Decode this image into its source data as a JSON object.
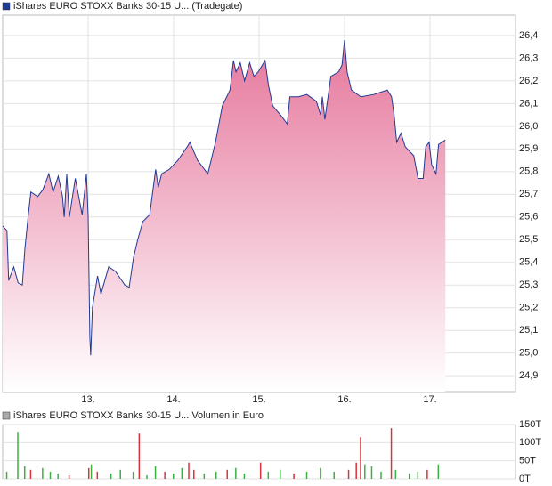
{
  "chart_data": [
    {
      "type": "line",
      "title": "iShares EURO STOXX Banks 30-15 U... (Tradegate)",
      "color": "#1f3a93",
      "fill_top": "#e6779c",
      "grid": true,
      "x": [
        12.0,
        12.05,
        12.07,
        12.13,
        12.18,
        12.23,
        12.26,
        12.3,
        12.33,
        12.41,
        12.47,
        12.54,
        12.59,
        12.65,
        12.7,
        12.72,
        12.75,
        12.78,
        12.85,
        12.93,
        12.98,
        13.0,
        13.02,
        13.03,
        13.05,
        13.11,
        13.15,
        13.24,
        13.32,
        13.43,
        13.48,
        13.53,
        13.58,
        13.64,
        13.72,
        13.79,
        13.82,
        13.86,
        13.95,
        14.05,
        14.16,
        14.19,
        14.28,
        14.4,
        14.49,
        14.57,
        14.66,
        14.7,
        14.73,
        14.78,
        14.83,
        14.89,
        14.94,
        14.99,
        15.07,
        15.11,
        15.16,
        15.25,
        15.33,
        15.36,
        15.46,
        15.56,
        15.67,
        15.72,
        15.74,
        15.77,
        15.84,
        15.93,
        15.97,
        16.0,
        16.03,
        16.08,
        16.19,
        16.34,
        16.5,
        16.55,
        16.58,
        16.61,
        16.66,
        16.71,
        16.81,
        16.86,
        16.92,
        16.95,
        16.99,
        17.02,
        17.07,
        17.1,
        17.18
      ],
      "values": [
        25.56,
        25.54,
        25.32,
        25.38,
        25.31,
        25.3,
        25.46,
        25.61,
        25.71,
        25.69,
        25.72,
        25.79,
        25.71,
        25.78,
        25.69,
        25.6,
        25.79,
        25.6,
        25.77,
        25.61,
        25.79,
        25.61,
        25.07,
        24.99,
        25.2,
        25.34,
        25.26,
        25.38,
        25.36,
        25.3,
        25.29,
        25.42,
        25.5,
        25.58,
        25.61,
        25.81,
        25.73,
        25.79,
        25.81,
        25.85,
        25.91,
        25.93,
        25.85,
        25.79,
        25.93,
        26.09,
        26.16,
        26.29,
        26.24,
        26.28,
        26.2,
        26.28,
        26.22,
        26.24,
        26.29,
        26.18,
        26.09,
        26.05,
        26.01,
        26.13,
        26.13,
        26.14,
        26.11,
        26.05,
        26.13,
        26.03,
        26.22,
        26.24,
        26.27,
        26.38,
        26.24,
        26.16,
        26.13,
        26.14,
        26.16,
        26.13,
        26.05,
        25.93,
        25.97,
        25.91,
        25.87,
        25.77,
        25.77,
        25.91,
        25.93,
        25.83,
        25.79,
        25.92,
        25.94
      ],
      "xlim": [
        12,
        18
      ],
      "xticks": [
        {
          "value": 13,
          "label": "13."
        },
        {
          "value": 14,
          "label": "14."
        },
        {
          "value": 15,
          "label": "15."
        },
        {
          "value": 16,
          "label": "16."
        },
        {
          "value": 17,
          "label": "17."
        }
      ],
      "ylim": [
        24.83,
        26.49
      ],
      "yticks": [
        {
          "value": 24.9,
          "label": "24,9"
        },
        {
          "value": 25.0,
          "label": "25,0"
        },
        {
          "value": 25.1,
          "label": "25,1"
        },
        {
          "value": 25.2,
          "label": "25,2"
        },
        {
          "value": 25.3,
          "label": "25,3"
        },
        {
          "value": 25.4,
          "label": "25,4"
        },
        {
          "value": 25.5,
          "label": "25,5"
        },
        {
          "value": 25.6,
          "label": "25,6"
        },
        {
          "value": 25.7,
          "label": "25,7"
        },
        {
          "value": 25.8,
          "label": "25,8"
        },
        {
          "value": 25.9,
          "label": "25,9"
        },
        {
          "value": 26.0,
          "label": "26,0"
        },
        {
          "value": 26.1,
          "label": "26,1"
        },
        {
          "value": 26.2,
          "label": "26,2"
        },
        {
          "value": 26.3,
          "label": "26,3"
        },
        {
          "value": 26.4,
          "label": "26,4"
        }
      ]
    },
    {
      "type": "bar",
      "title": "iShares EURO STOXX Banks 30-15 U... Volumen in Euro",
      "legend_color": "#aaaaaa",
      "grid": true,
      "x": [
        12.05,
        12.18,
        12.26,
        12.33,
        12.47,
        12.56,
        12.65,
        12.78,
        13.01,
        13.04,
        13.11,
        13.27,
        13.38,
        13.53,
        13.6,
        13.69,
        13.79,
        13.9,
        14.0,
        14.1,
        14.18,
        14.24,
        14.36,
        14.5,
        14.63,
        14.73,
        14.83,
        15.02,
        15.11,
        15.25,
        15.41,
        15.56,
        15.72,
        15.88,
        16.05,
        16.14,
        16.19,
        16.24,
        16.32,
        16.43,
        16.55,
        16.6,
        16.76,
        16.86,
        16.97,
        17.1
      ],
      "values": [
        20,
        130,
        35,
        25,
        30,
        20,
        15,
        10,
        30,
        40,
        20,
        15,
        25,
        20,
        125,
        10,
        35,
        20,
        15,
        30,
        45,
        25,
        15,
        20,
        25,
        30,
        15,
        45,
        20,
        25,
        15,
        20,
        30,
        20,
        25,
        45,
        115,
        40,
        35,
        20,
        140,
        25,
        15,
        20,
        25,
        40
      ],
      "colors": [
        "#3cb043",
        "#3cb043",
        "#3cb043",
        "#d8343c",
        "#3cb043",
        "#3cb043",
        "#3cb043",
        "#d8343c",
        "#d8343c",
        "#3cb043",
        "#d8343c",
        "#3cb043",
        "#3cb043",
        "#3cb043",
        "#d8343c",
        "#3cb043",
        "#3cb043",
        "#d8343c",
        "#3cb043",
        "#3cb043",
        "#d8343c",
        "#d8343c",
        "#3cb043",
        "#3cb043",
        "#d8343c",
        "#3cb043",
        "#3cb043",
        "#d8343c",
        "#3cb043",
        "#3cb043",
        "#d8343c",
        "#3cb043",
        "#3cb043",
        "#3cb043",
        "#d8343c",
        "#d8343c",
        "#d8343c",
        "#3cb043",
        "#3cb043",
        "#3cb043",
        "#d8343c",
        "#3cb043",
        "#3cb043",
        "#3cb043",
        "#d8343c",
        "#3cb043"
      ],
      "xlim": [
        12,
        18
      ],
      "ylim": [
        0,
        150
      ],
      "yticks": [
        {
          "value": 0,
          "label": "0T"
        },
        {
          "value": 50,
          "label": "50T"
        },
        {
          "value": 100,
          "label": "100T"
        },
        {
          "value": 150,
          "label": "150T"
        }
      ]
    }
  ]
}
